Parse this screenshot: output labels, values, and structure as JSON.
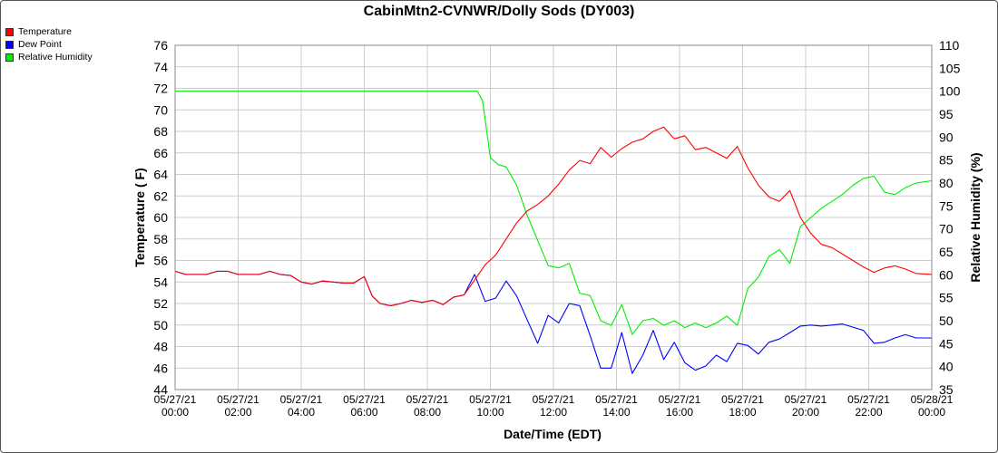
{
  "chart_data": {
    "type": "line",
    "title": "CabinMtn2-CVNWR/Dolly Sods (DY003)",
    "xlabel": "Date/Time (EDT)",
    "ylabel": "Temperature ( F)",
    "y2label": "Relative Humidity (%)",
    "x_ticks": [
      [
        "05/27/21",
        "00:00"
      ],
      [
        "05/27/21",
        "02:00"
      ],
      [
        "05/27/21",
        "04:00"
      ],
      [
        "05/27/21",
        "06:00"
      ],
      [
        "05/27/21",
        "08:00"
      ],
      [
        "05/27/21",
        "10:00"
      ],
      [
        "05/27/21",
        "12:00"
      ],
      [
        "05/27/21",
        "14:00"
      ],
      [
        "05/27/21",
        "16:00"
      ],
      [
        "05/27/21",
        "18:00"
      ],
      [
        "05/27/21",
        "20:00"
      ],
      [
        "05/27/21",
        "22:00"
      ],
      [
        "05/28/21",
        "00:00"
      ]
    ],
    "xlim": [
      "05/27/21 00:00",
      "05/28/21 00:00"
    ],
    "ylim": [
      44,
      76
    ],
    "yticks": [
      44,
      46,
      48,
      50,
      52,
      54,
      56,
      58,
      60,
      62,
      64,
      66,
      68,
      70,
      72,
      74,
      76
    ],
    "y2lim": [
      35,
      110
    ],
    "y2ticks": [
      35,
      40,
      45,
      50,
      55,
      60,
      65,
      70,
      75,
      80,
      85,
      90,
      95,
      100,
      105,
      110
    ],
    "grid": true,
    "legend_position": "top-left",
    "series": [
      {
        "name": "Temperature",
        "color": "#ff0000",
        "axis": "left",
        "points": [
          [
            "05/27/21 00:00",
            55.0
          ],
          [
            "05/27/21 00:20",
            54.7
          ],
          [
            "05/27/21 01:00",
            54.7
          ],
          [
            "05/27/21 01:20",
            55.0
          ],
          [
            "05/27/21 01:40",
            55.0
          ],
          [
            "05/27/21 02:00",
            54.7
          ],
          [
            "05/27/21 02:40",
            54.7
          ],
          [
            "05/27/21 03:00",
            55.0
          ],
          [
            "05/27/21 03:20",
            54.7
          ],
          [
            "05/27/21 03:40",
            54.6
          ],
          [
            "05/27/21 04:00",
            54.0
          ],
          [
            "05/27/21 04:20",
            53.8
          ],
          [
            "05/27/21 04:40",
            54.1
          ],
          [
            "05/27/21 05:20",
            53.9
          ],
          [
            "05/27/21 05:40",
            53.9
          ],
          [
            "05/27/21 06:00",
            54.5
          ],
          [
            "05/27/21 06:15",
            52.7
          ],
          [
            "05/27/21 06:30",
            52.0
          ],
          [
            "05/27/21 06:50",
            51.8
          ],
          [
            "05/27/21 07:10",
            52.0
          ],
          [
            "05/27/21 07:30",
            52.3
          ],
          [
            "05/27/21 07:50",
            52.1
          ],
          [
            "05/27/21 08:10",
            52.3
          ],
          [
            "05/27/21 08:30",
            51.9
          ],
          [
            "05/27/21 08:50",
            52.6
          ],
          [
            "05/27/21 09:10",
            52.8
          ],
          [
            "05/27/21 09:30",
            54.2
          ],
          [
            "05/27/21 09:50",
            55.6
          ],
          [
            "05/27/21 10:10",
            56.5
          ],
          [
            "05/27/21 10:30",
            58.0
          ],
          [
            "05/27/21 10:50",
            59.5
          ],
          [
            "05/27/21 11:10",
            60.6
          ],
          [
            "05/27/21 11:30",
            61.2
          ],
          [
            "05/27/21 11:50",
            62.0
          ],
          [
            "05/27/21 12:10",
            63.1
          ],
          [
            "05/27/21 12:30",
            64.4
          ],
          [
            "05/27/21 12:50",
            65.3
          ],
          [
            "05/27/21 13:10",
            65.0
          ],
          [
            "05/27/21 13:30",
            66.5
          ],
          [
            "05/27/21 13:50",
            65.6
          ],
          [
            "05/27/21 14:10",
            66.4
          ],
          [
            "05/27/21 14:30",
            67.0
          ],
          [
            "05/27/21 14:50",
            67.3
          ],
          [
            "05/27/21 15:10",
            68.0
          ],
          [
            "05/27/21 15:30",
            68.4
          ],
          [
            "05/27/21 15:50",
            67.3
          ],
          [
            "05/27/21 16:10",
            67.6
          ],
          [
            "05/27/21 16:30",
            66.3
          ],
          [
            "05/27/21 16:50",
            66.5
          ],
          [
            "05/27/21 17:10",
            66.0
          ],
          [
            "05/27/21 17:30",
            65.5
          ],
          [
            "05/27/21 17:50",
            66.6
          ],
          [
            "05/27/21 18:10",
            64.6
          ],
          [
            "05/27/21 18:30",
            63.0
          ],
          [
            "05/27/21 18:50",
            61.9
          ],
          [
            "05/27/21 19:10",
            61.5
          ],
          [
            "05/27/21 19:30",
            62.5
          ],
          [
            "05/27/21 19:50",
            60.0
          ],
          [
            "05/27/21 20:10",
            58.5
          ],
          [
            "05/27/21 20:30",
            57.5
          ],
          [
            "05/27/21 20:50",
            57.2
          ],
          [
            "05/27/21 21:10",
            56.6
          ],
          [
            "05/27/21 21:30",
            56.0
          ],
          [
            "05/27/21 21:50",
            55.4
          ],
          [
            "05/27/21 22:10",
            54.9
          ],
          [
            "05/27/21 22:30",
            55.3
          ],
          [
            "05/27/21 22:50",
            55.5
          ],
          [
            "05/27/21 23:10",
            55.2
          ],
          [
            "05/27/21 23:30",
            54.8
          ],
          [
            "05/28/21 00:00",
            54.7
          ]
        ]
      },
      {
        "name": "Dew Point",
        "color": "#0000ff",
        "axis": "left",
        "points": [
          [
            "05/27/21 00:00",
            55.0
          ],
          [
            "05/27/21 00:20",
            54.7
          ],
          [
            "05/27/21 01:00",
            54.7
          ],
          [
            "05/27/21 01:20",
            55.0
          ],
          [
            "05/27/21 01:40",
            55.0
          ],
          [
            "05/27/21 02:00",
            54.7
          ],
          [
            "05/27/21 02:40",
            54.7
          ],
          [
            "05/27/21 03:00",
            55.0
          ],
          [
            "05/27/21 03:20",
            54.7
          ],
          [
            "05/27/21 03:40",
            54.6
          ],
          [
            "05/27/21 04:00",
            54.0
          ],
          [
            "05/27/21 04:20",
            53.8
          ],
          [
            "05/27/21 04:40",
            54.1
          ],
          [
            "05/27/21 05:20",
            53.9
          ],
          [
            "05/27/21 05:40",
            53.9
          ],
          [
            "05/27/21 06:00",
            54.5
          ],
          [
            "05/27/21 06:15",
            52.7
          ],
          [
            "05/27/21 06:30",
            52.0
          ],
          [
            "05/27/21 06:50",
            51.8
          ],
          [
            "05/27/21 07:10",
            52.0
          ],
          [
            "05/27/21 07:30",
            52.3
          ],
          [
            "05/27/21 07:50",
            52.1
          ],
          [
            "05/27/21 08:10",
            52.3
          ],
          [
            "05/27/21 08:30",
            51.9
          ],
          [
            "05/27/21 08:50",
            52.6
          ],
          [
            "05/27/21 09:10",
            52.8
          ],
          [
            "05/27/21 09:30",
            54.7
          ],
          [
            "05/27/21 09:50",
            52.2
          ],
          [
            "05/27/21 10:10",
            52.5
          ],
          [
            "05/27/21 10:30",
            54.1
          ],
          [
            "05/27/21 10:50",
            52.7
          ],
          [
            "05/27/21 11:10",
            50.5
          ],
          [
            "05/27/21 11:30",
            48.3
          ],
          [
            "05/27/21 11:50",
            50.9
          ],
          [
            "05/27/21 12:10",
            50.2
          ],
          [
            "05/27/21 12:30",
            52.0
          ],
          [
            "05/27/21 12:50",
            51.8
          ],
          [
            "05/27/21 13:10",
            49.0
          ],
          [
            "05/27/21 13:30",
            46.0
          ],
          [
            "05/27/21 13:50",
            46.0
          ],
          [
            "05/27/21 14:10",
            49.3
          ],
          [
            "05/27/21 14:30",
            45.5
          ],
          [
            "05/27/21 14:50",
            47.2
          ],
          [
            "05/27/21 15:10",
            49.5
          ],
          [
            "05/27/21 15:30",
            46.8
          ],
          [
            "05/27/21 15:50",
            48.4
          ],
          [
            "05/27/21 16:10",
            46.5
          ],
          [
            "05/27/21 16:30",
            45.8
          ],
          [
            "05/27/21 16:50",
            46.2
          ],
          [
            "05/27/21 17:10",
            47.2
          ],
          [
            "05/27/21 17:30",
            46.6
          ],
          [
            "05/27/21 17:50",
            48.3
          ],
          [
            "05/27/21 18:10",
            48.1
          ],
          [
            "05/27/21 18:30",
            47.3
          ],
          [
            "05/27/21 18:50",
            48.4
          ],
          [
            "05/27/21 19:10",
            48.7
          ],
          [
            "05/27/21 19:30",
            49.3
          ],
          [
            "05/27/21 19:50",
            49.9
          ],
          [
            "05/27/21 20:10",
            50.0
          ],
          [
            "05/27/21 20:30",
            49.9
          ],
          [
            "05/27/21 20:50",
            50.0
          ],
          [
            "05/27/21 21:10",
            50.1
          ],
          [
            "05/27/21 21:30",
            49.8
          ],
          [
            "05/27/21 21:50",
            49.5
          ],
          [
            "05/27/21 22:10",
            48.3
          ],
          [
            "05/27/21 22:30",
            48.4
          ],
          [
            "05/27/21 22:50",
            48.8
          ],
          [
            "05/27/21 23:10",
            49.1
          ],
          [
            "05/27/21 23:30",
            48.8
          ],
          [
            "05/28/21 00:00",
            48.8
          ]
        ]
      },
      {
        "name": "Relative Humidity",
        "color": "#00ee00",
        "axis": "right",
        "points": [
          [
            "05/27/21 00:00",
            100
          ],
          [
            "05/27/21 09:35",
            100
          ],
          [
            "05/27/21 09:45",
            98
          ],
          [
            "05/27/21 10:00",
            85.5
          ],
          [
            "05/27/21 10:15",
            84.0
          ],
          [
            "05/27/21 10:30",
            83.5
          ],
          [
            "05/27/21 10:50",
            79.5
          ],
          [
            "05/27/21 11:10",
            73.0
          ],
          [
            "05/27/21 11:30",
            67.5
          ],
          [
            "05/27/21 11:50",
            62.0
          ],
          [
            "05/27/21 12:10",
            61.5
          ],
          [
            "05/27/21 12:30",
            62.5
          ],
          [
            "05/27/21 12:50",
            56.0
          ],
          [
            "05/27/21 13:10",
            55.5
          ],
          [
            "05/27/21 13:30",
            50.0
          ],
          [
            "05/27/21 13:50",
            49.0
          ],
          [
            "05/27/21 14:10",
            53.5
          ],
          [
            "05/27/21 14:30",
            47.0
          ],
          [
            "05/27/21 14:50",
            50.0
          ],
          [
            "05/27/21 15:10",
            50.5
          ],
          [
            "05/27/21 15:30",
            49.0
          ],
          [
            "05/27/21 15:50",
            50.0
          ],
          [
            "05/27/21 16:10",
            48.5
          ],
          [
            "05/27/21 16:30",
            49.5
          ],
          [
            "05/27/21 16:50",
            48.5
          ],
          [
            "05/27/21 17:10",
            49.5
          ],
          [
            "05/27/21 17:30",
            51.0
          ],
          [
            "05/27/21 17:50",
            49.0
          ],
          [
            "05/27/21 18:10",
            57.0
          ],
          [
            "05/27/21 18:30",
            59.5
          ],
          [
            "05/27/21 18:50",
            64.0
          ],
          [
            "05/27/21 19:10",
            65.5
          ],
          [
            "05/27/21 19:30",
            62.5
          ],
          [
            "05/27/21 19:50",
            70.5
          ],
          [
            "05/27/21 20:10",
            72.5
          ],
          [
            "05/27/21 20:30",
            74.5
          ],
          [
            "05/27/21 20:50",
            76.0
          ],
          [
            "05/27/21 21:10",
            77.5
          ],
          [
            "05/27/21 21:30",
            79.5
          ],
          [
            "05/27/21 21:50",
            81.0
          ],
          [
            "05/27/21 22:10",
            81.5
          ],
          [
            "05/27/21 22:30",
            78.0
          ],
          [
            "05/27/21 22:50",
            77.5
          ],
          [
            "05/27/21 23:10",
            79.0
          ],
          [
            "05/27/21 23:30",
            80.0
          ],
          [
            "05/28/21 00:00",
            80.5
          ]
        ]
      }
    ]
  }
}
